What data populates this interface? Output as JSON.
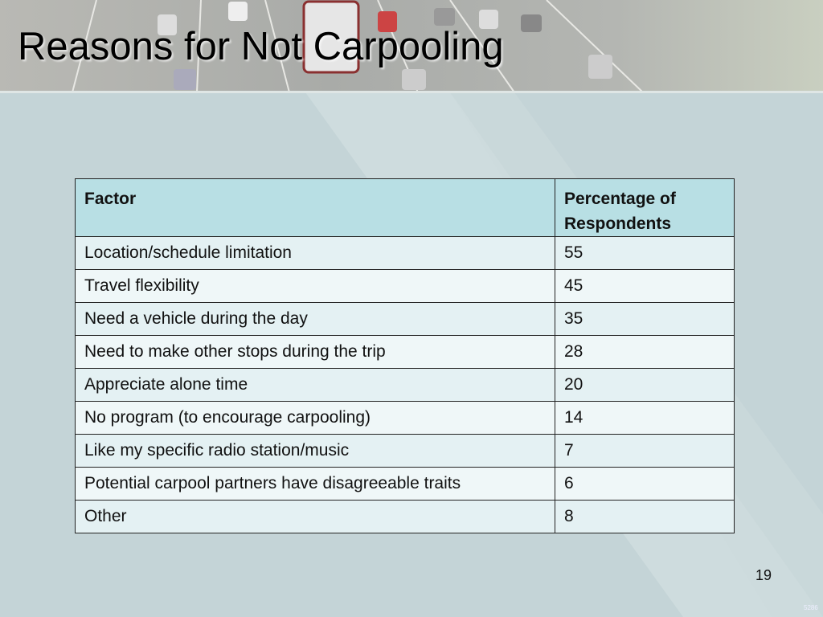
{
  "header": {
    "title": "Reasons for Not Carpooling"
  },
  "table": {
    "columns": [
      "Factor",
      "Percentage of Respondents"
    ],
    "rows": [
      [
        "Location/schedule limitation",
        55
      ],
      [
        "Travel flexibility",
        45
      ],
      [
        "Need a vehicle during the day",
        35
      ],
      [
        "Need to make other stops during the trip",
        28
      ],
      [
        "Appreciate alone time",
        20
      ],
      [
        "No program (to encourage carpooling)",
        14
      ],
      [
        "Like my specific radio station/music",
        7
      ],
      [
        "Potential carpool partners have disagreeable traits",
        6
      ],
      [
        "Other",
        8
      ]
    ]
  },
  "footer": {
    "page_number": "19",
    "code": "5286"
  }
}
